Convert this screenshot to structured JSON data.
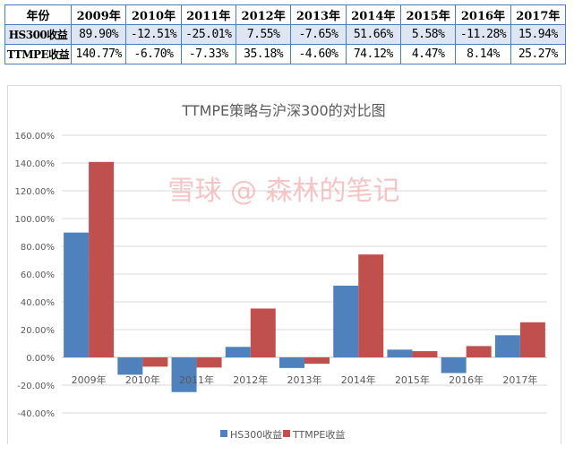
{
  "table": {
    "header": [
      "年份",
      "2009年",
      "2010年",
      "2011年",
      "2012年",
      "2013年",
      "2014年",
      "2015年",
      "2016年",
      "2017年"
    ],
    "rows": [
      {
        "label": "HS300收益",
        "values": [
          "89.90%",
          "-12.51%",
          "-25.01%",
          "7.55%",
          "-7.65%",
          "51.66%",
          "5.58%",
          "-11.28%",
          "15.94%"
        ]
      },
      {
        "label": "TTMPE收益",
        "values": [
          "140.77%",
          "-6.70%",
          "-7.33%",
          "35.18%",
          "-4.60%",
          "74.12%",
          "4.47%",
          "8.14%",
          "25.27%"
        ]
      }
    ]
  },
  "watermark": "雪球 @ 森林的笔记",
  "chart_data": {
    "type": "bar",
    "title": "TTMPE策略与沪深300的对比图",
    "categories": [
      "2009年",
      "2010年",
      "2011年",
      "2012年",
      "2013年",
      "2014年",
      "2015年",
      "2016年",
      "2017年"
    ],
    "series": [
      {
        "name": "HS300收益",
        "color": "#4f81bd",
        "values": [
          89.9,
          -12.51,
          -25.01,
          7.55,
          -7.65,
          51.66,
          5.58,
          -11.28,
          15.94
        ]
      },
      {
        "name": "TTMPE收益",
        "color": "#c0504d",
        "values": [
          140.77,
          -6.7,
          -7.33,
          35.18,
          -4.6,
          74.12,
          4.47,
          8.14,
          25.27
        ]
      }
    ],
    "ylim": [
      -40,
      160
    ],
    "yticks": [
      "160.00%",
      "140.00%",
      "120.00%",
      "100.00%",
      "80.00%",
      "60.00%",
      "40.00%",
      "20.00%",
      "0.00%",
      "-20.00%",
      "-40.00%"
    ],
    "grid": true,
    "legend": "bottom"
  }
}
